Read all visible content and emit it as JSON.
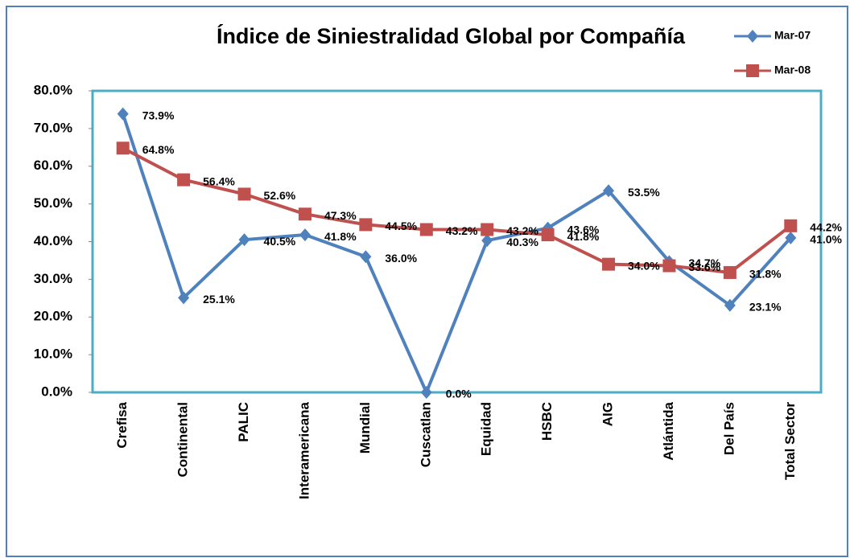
{
  "chart_data": {
    "type": "line",
    "title": "Índice de Siniestralidad Global por Compañía",
    "categories": [
      "Crefisa",
      "Continental",
      "PALIC",
      "Interamericana",
      "Mundial",
      "Cuscatlan",
      "Equidad",
      "HSBC",
      "AIG",
      "Atlántida",
      "Del País",
      "Total Sector"
    ],
    "series": [
      {
        "name": "Mar-07",
        "color": "#4f81bd",
        "marker": "diamond",
        "values": [
          73.9,
          25.1,
          40.5,
          41.8,
          36.0,
          0.0,
          40.3,
          43.6,
          53.5,
          34.7,
          23.1,
          41.0
        ],
        "value_labels": [
          "73.9%",
          "25.1%",
          "40.5%",
          "41.8%",
          "36.0%",
          "0.0%",
          "40.3%",
          "43.6%",
          "53.5%",
          "34.7%",
          "23.1%",
          "41.0%"
        ]
      },
      {
        "name": "Mar-08",
        "color": "#c0504d",
        "marker": "square",
        "values": [
          64.8,
          56.4,
          52.6,
          47.3,
          44.5,
          43.2,
          43.2,
          41.8,
          34.0,
          33.6,
          31.8,
          44.2
        ],
        "value_labels": [
          "64.8%",
          "56.4%",
          "52.6%",
          "47.3%",
          "44.5%",
          "43.2%",
          "43.2%",
          "41.8%",
          "34.0%",
          "33.6%",
          "31.8%",
          "44.2%"
        ]
      }
    ],
    "ylim": [
      0,
      80
    ],
    "yticks": [
      {
        "value": 0,
        "label": "0.0%"
      },
      {
        "value": 10,
        "label": "10.0%"
      },
      {
        "value": 20,
        "label": "20.0%"
      },
      {
        "value": 30,
        "label": "30.0%"
      },
      {
        "value": 40,
        "label": "40.0%"
      },
      {
        "value": 50,
        "label": "50.0%"
      },
      {
        "value": 60,
        "label": "60.0%"
      },
      {
        "value": 70,
        "label": "70.0%"
      },
      {
        "value": 80,
        "label": "80.0%"
      }
    ],
    "legend": "top-right",
    "plot_border_color": "#4bacc6"
  }
}
